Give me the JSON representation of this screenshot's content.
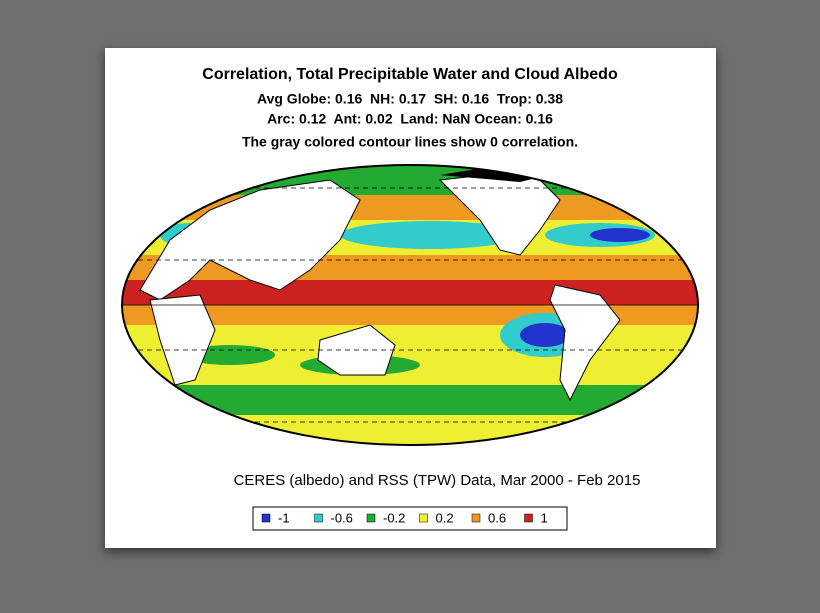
{
  "title": "Correlation, Total Precipitable Water and Cloud Albedo",
  "stats_lines": [
    "Avg Globe: 0.16  NH: 0.17  SH: 0.16  Trop: 0.38",
    "Arc: 0.12  Ant: 0.02  Land: NaN Ocean: 0.16"
  ],
  "note": "The gray colored contour lines show 0 correlation.",
  "caption": "CERES (albedo) and RSS (TPW) Data, Mar 2000 - Feb 2015",
  "legend": [
    {
      "label": "-1",
      "color": "#2233cc"
    },
    {
      "label": "-0.6",
      "color": "#33cccc"
    },
    {
      "label": "-0.2",
      "color": "#22aa33"
    },
    {
      "label": "0.2",
      "color": "#eeee33"
    },
    {
      "label": "0.6",
      "color": "#ee9922"
    },
    {
      "label": "1",
      "color": "#cc2222"
    }
  ]
}
